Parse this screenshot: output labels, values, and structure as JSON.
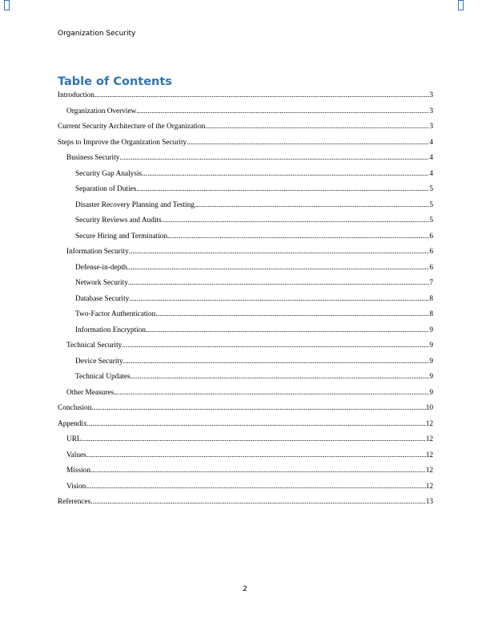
{
  "header": {
    "text": "Organization Security"
  },
  "title": "Table of Contents",
  "toc": [
    {
      "label": "Introduction",
      "page": "3",
      "level": 0
    },
    {
      "label": "Organization Overview",
      "page": "3",
      "level": 1
    },
    {
      "label": "Current Security Architecture of the Organization",
      "page": "3",
      "level": 0
    },
    {
      "label": "Steps to Improve the Organization Security",
      "page": "4",
      "level": 0
    },
    {
      "label": "Business Security",
      "page": "4",
      "level": 1
    },
    {
      "label": "Security Gap Analysis",
      "page": "4",
      "level": 2
    },
    {
      "label": "Separation of Duties",
      "page": "5",
      "level": 2
    },
    {
      "label": "Disaster Recovery Planning and Testing",
      "page": "5",
      "level": 2
    },
    {
      "label": "Security Reviews and Audits",
      "page": "5",
      "level": 2
    },
    {
      "label": "Secure Hiring and Termination",
      "page": "6",
      "level": 2
    },
    {
      "label": "Information Security",
      "page": "6",
      "level": 1
    },
    {
      "label": "Defense-in-depth",
      "page": "6",
      "level": 2
    },
    {
      "label": "Network Security",
      "page": "7",
      "level": 2
    },
    {
      "label": "Database Security",
      "page": "8",
      "level": 2
    },
    {
      "label": "Two-Factor Authentication",
      "page": "8",
      "level": 2
    },
    {
      "label": "Information Encryption",
      "page": "9",
      "level": 2
    },
    {
      "label": "Technical Security",
      "page": "9",
      "level": 1
    },
    {
      "label": "Device Security",
      "page": "9",
      "level": 2
    },
    {
      "label": "Technical Updates",
      "page": "9",
      "level": 2
    },
    {
      "label": "Other Measures",
      "page": "9",
      "level": 1
    },
    {
      "label": "Conclusion",
      "page": "10",
      "level": 0
    },
    {
      "label": "Appendix",
      "page": "12",
      "level": 0
    },
    {
      "label": "URL",
      "page": "12",
      "level": 1
    },
    {
      "label": "Values",
      "page": "12",
      "level": 1
    },
    {
      "label": "Mission",
      "page": "12",
      "level": 1
    },
    {
      "label": "Vision",
      "page": "12",
      "level": 1
    },
    {
      "label": "References",
      "page": "13",
      "level": 0
    }
  ],
  "footer": {
    "page_number": "2"
  },
  "colors": {
    "heading": "#2e74b5"
  }
}
